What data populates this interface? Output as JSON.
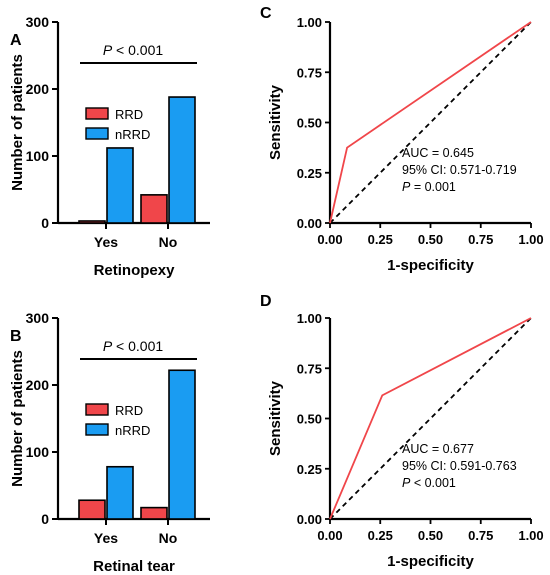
{
  "colors": {
    "rrd": "#f0464a",
    "nrrd": "#1a9cf2",
    "roc": "#f0464a",
    "axis": "#000000"
  },
  "chart_data": [
    {
      "panel": "A",
      "type": "bar",
      "categories": [
        "Yes",
        "No"
      ],
      "series": [
        {
          "name": "RRD",
          "values": [
            3,
            42
          ]
        },
        {
          "name": "nRRD",
          "values": [
            112,
            188
          ]
        }
      ],
      "xlabel": "Retinopexy",
      "ylabel": "Number of patients",
      "ylim": [
        0,
        300
      ],
      "yticks": [
        0,
        100,
        200,
        300
      ],
      "annotation_p": "P",
      "annotation_rest": " < 0.001",
      "legend_placement": "left, mid-height"
    },
    {
      "panel": "B",
      "type": "bar",
      "categories": [
        "Yes",
        "No"
      ],
      "series": [
        {
          "name": "RRD",
          "values": [
            28,
            17
          ]
        },
        {
          "name": "nRRD",
          "values": [
            78,
            222
          ]
        }
      ],
      "xlabel": "Retinal tear",
      "ylabel": "Number of patients",
      "ylim": [
        0,
        300
      ],
      "yticks": [
        0,
        100,
        200,
        300
      ],
      "annotation_p": "P",
      "annotation_rest": " < 0.001",
      "legend_placement": "left, mid-height"
    },
    {
      "panel": "C",
      "type": "line",
      "roc": {
        "x": [
          0,
          0.085,
          1
        ],
        "y": [
          0,
          0.375,
          1
        ]
      },
      "reference": {
        "x": [
          0,
          1
        ],
        "y": [
          0,
          1
        ],
        "style": "dashed"
      },
      "xlabel": "1-specificity",
      "ylabel": "Sensitivity",
      "xlim": [
        0,
        1
      ],
      "ylim": [
        0,
        1
      ],
      "ticks": [
        "0.00",
        "0.25",
        "0.50",
        "0.75",
        "1.00"
      ],
      "stats": [
        "AUC = 0.645",
        "95% CI: 0.571-0.719"
      ],
      "p_label": "P",
      "p_value": " = 0.001"
    },
    {
      "panel": "D",
      "type": "line",
      "roc": {
        "x": [
          0,
          0.26,
          1
        ],
        "y": [
          0,
          0.615,
          1
        ]
      },
      "reference": {
        "x": [
          0,
          1
        ],
        "y": [
          0,
          1
        ],
        "style": "dashed"
      },
      "xlabel": "1-specificity",
      "ylabel": "Sensitivity",
      "xlim": [
        0,
        1
      ],
      "ylim": [
        0,
        1
      ],
      "ticks": [
        "0.00",
        "0.25",
        "0.50",
        "0.75",
        "1.00"
      ],
      "stats": [
        "AUC = 0.677",
        "95% CI: 0.591-0.763"
      ],
      "p_label": "P",
      "p_value": " < 0.001"
    }
  ]
}
